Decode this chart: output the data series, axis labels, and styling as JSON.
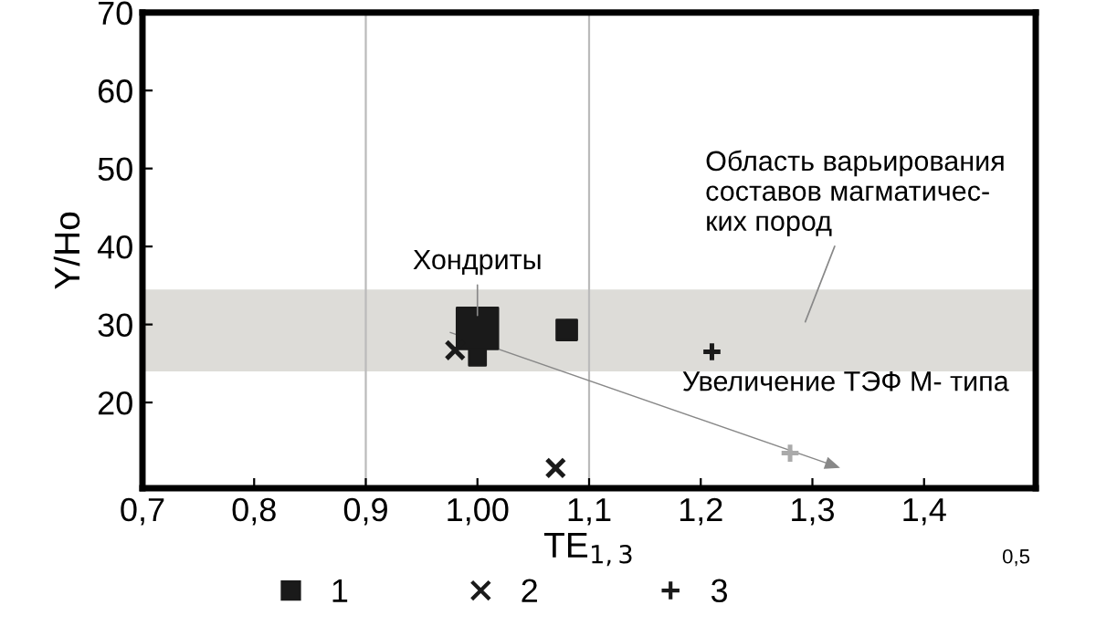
{
  "chart_data": {
    "type": "scatter",
    "xlabel": "TE$_{1,3}$",
    "ylabel": "Y/Ho",
    "xlim": [
      0.7,
      1.5
    ],
    "ylim": [
      9,
      70
    ],
    "xticks": [
      {
        "value": 0.7,
        "label": "0,7"
      },
      {
        "value": 0.8,
        "label": "0,8"
      },
      {
        "value": 0.9,
        "label": "0,9"
      },
      {
        "value": 1.0,
        "label": "1,00"
      },
      {
        "value": 1.1,
        "label": "1,1"
      },
      {
        "value": 1.2,
        "label": "1,2"
      },
      {
        "value": 1.3,
        "label": "1,3"
      },
      {
        "value": 1.4,
        "label": "1,4"
      }
    ],
    "yticks": [
      20,
      30,
      40,
      50,
      60,
      70
    ],
    "grid": false,
    "legend": "bottom",
    "bands": [
      {
        "axis": "y",
        "from": 24,
        "to": 34.5,
        "color": "#dddcd8"
      }
    ],
    "ref_lines": [
      {
        "axis": "x",
        "value": 0.9,
        "color": "#bbbbbb"
      },
      {
        "axis": "x",
        "value": 1.1,
        "color": "#bbbbbb"
      }
    ],
    "series": [
      {
        "name": "1",
        "type": "bubble",
        "marker": "square",
        "color": "#1a1a1a",
        "x": [
          1.0,
          1.0,
          1.08
        ],
        "values": [
          29.5,
          25.8,
          29.3
        ],
        "sizes": [
          1,
          0.16,
          0.24
        ]
      },
      {
        "name": "2",
        "marker": "cross",
        "color": "#1a1a1a",
        "x": [
          0.98,
          1.07
        ],
        "values": [
          26.7,
          11.6
        ]
      },
      {
        "name": "3",
        "marker": "plus",
        "colors": [
          "#1a1a1a",
          "#aaaaaa"
        ],
        "x": [
          1.21,
          1.28
        ],
        "values": [
          26.5,
          13.5
        ]
      }
    ],
    "annotations": [
      {
        "text": "Хондриты",
        "x": 1.0,
        "y": 30.5
      },
      "Область варьирования\nсоставов магматичес-\nких пород",
      "Увеличение ТЭФ М- типа",
      "0,5"
    ]
  }
}
